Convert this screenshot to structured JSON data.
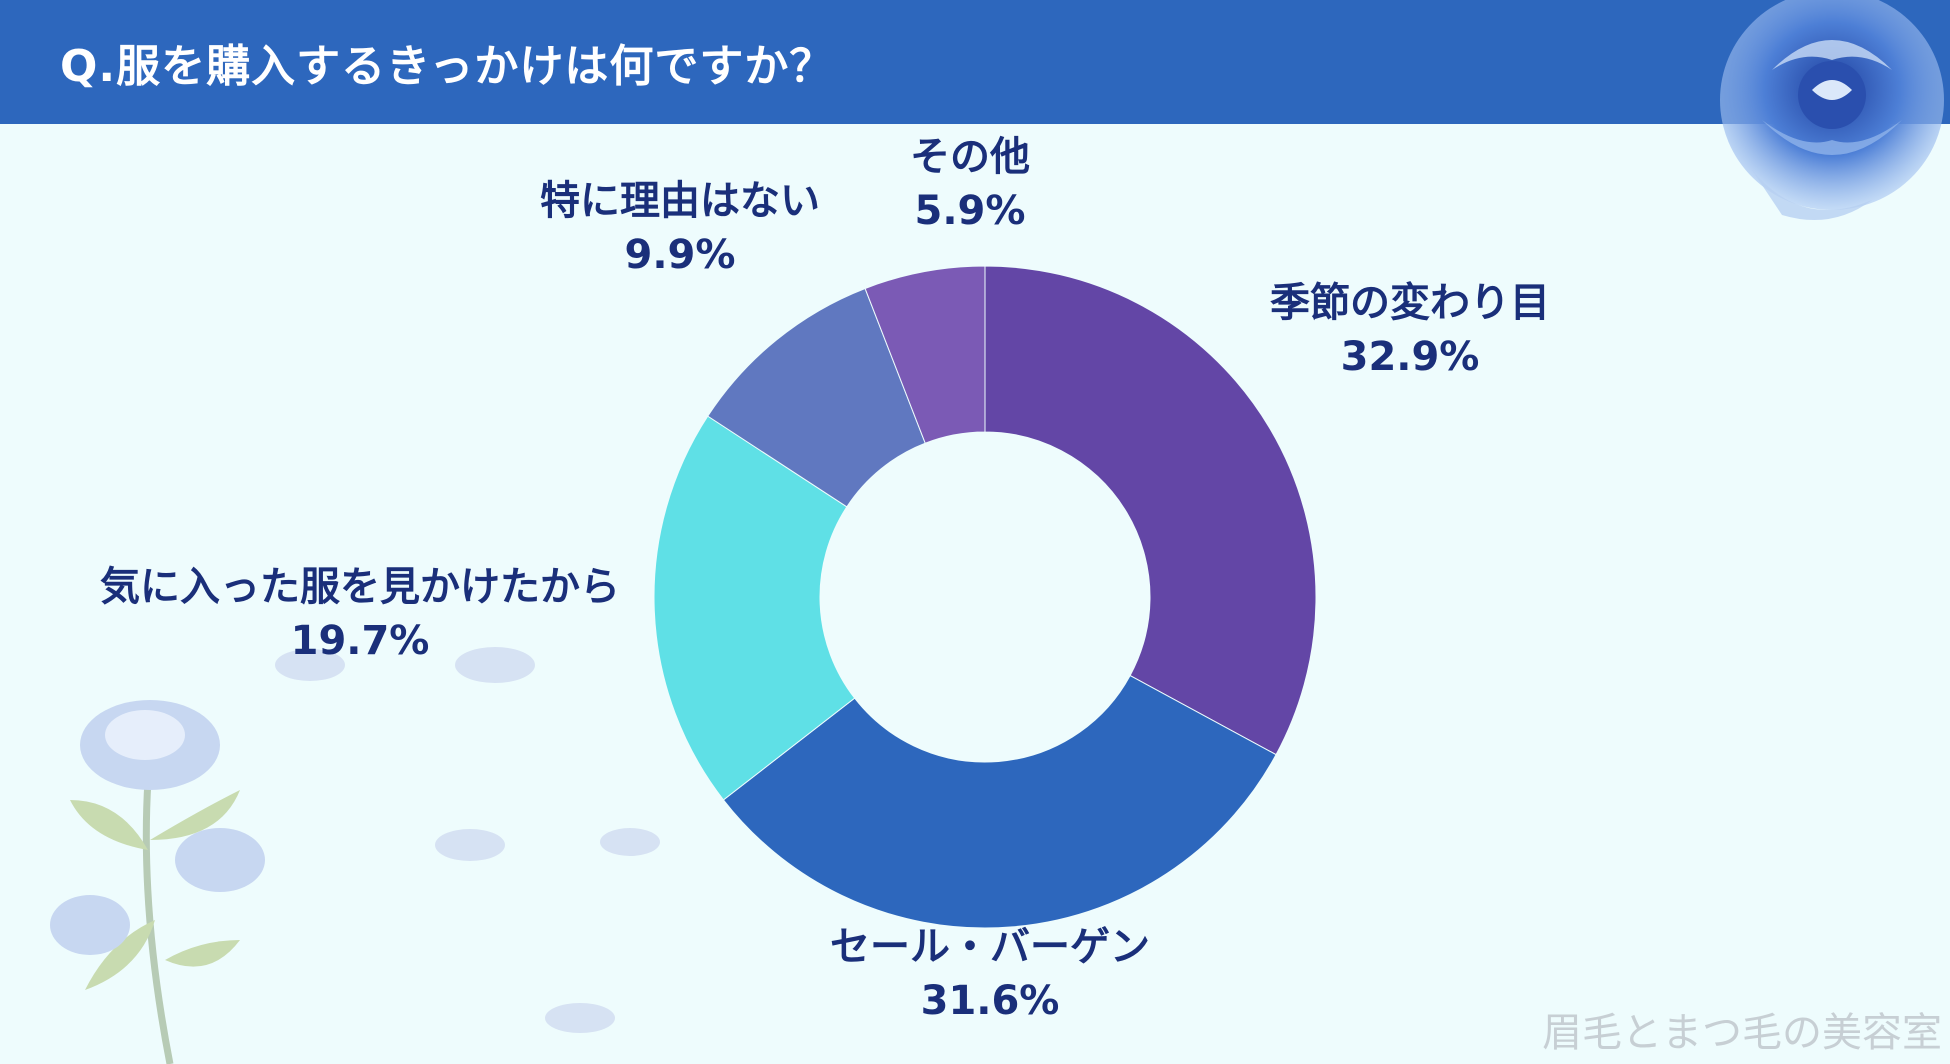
{
  "header": {
    "title": "Q.服を購入するきっかけは何ですか？"
  },
  "chart_data": {
    "type": "pie",
    "donut": true,
    "categories": [
      "季節の変わり目",
      "セール・バーゲン",
      "気に入った服を見かけたから",
      "特に理由はない",
      "その他"
    ],
    "values": [
      32.9,
      31.6,
      19.7,
      9.9,
      5.9
    ],
    "value_labels": [
      "32.9%",
      "31.6%",
      "19.7%",
      "9.9%",
      "5.9%"
    ],
    "colors": [
      "#6346a6",
      "#2d67bd",
      "#5fe0e6",
      "#6078c0",
      "#7b5ab5"
    ],
    "start": "top, clockwise"
  },
  "watermark": "眉毛とまつ毛の美容室",
  "decorations": [
    "blue-rose-icon",
    "rose-stem-icon",
    "petal-icon"
  ]
}
